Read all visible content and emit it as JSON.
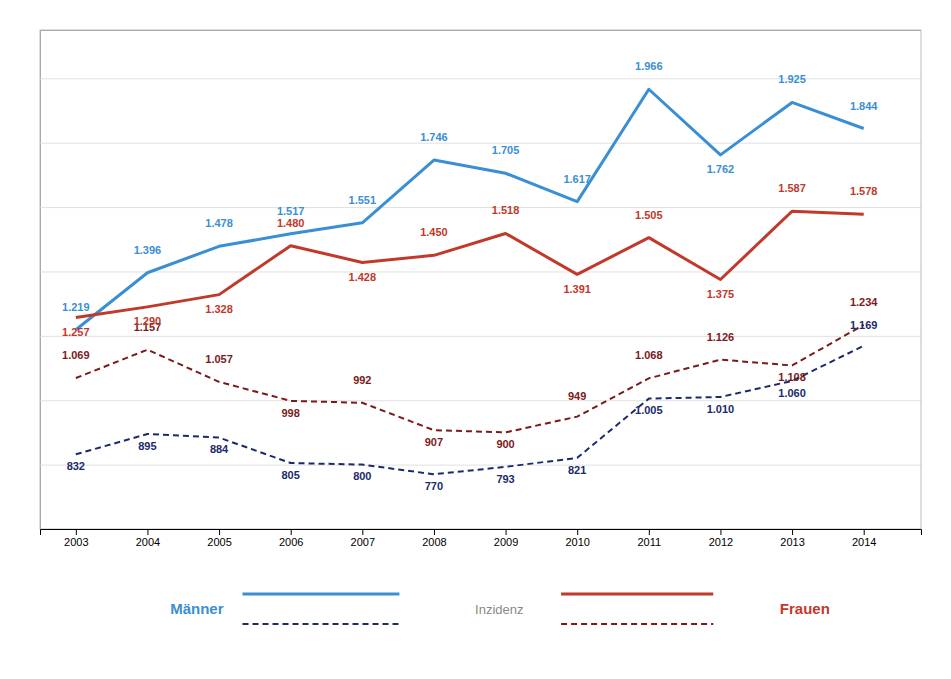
{
  "chart_data": {
    "type": "line",
    "x": [
      2003,
      2004,
      2005,
      2006,
      2007,
      2008,
      2009,
      2010,
      2011,
      2012,
      2013,
      2014
    ],
    "xlim": [
      2002.5,
      2014.8
    ],
    "xticks": [
      2003,
      2004,
      2005,
      2006,
      2007,
      2008,
      2009,
      2010,
      2011,
      2012,
      2013,
      2014
    ],
    "ylim": [
      600,
      2150
    ],
    "yticks": [
      800,
      1000,
      1200,
      1400,
      1600,
      1800,
      2000
    ],
    "grid": true,
    "tick_labels": "x",
    "data_labels": true,
    "annotations": [
      {
        "text": "Männer",
        "color": "#3a8fd4"
      },
      {
        "text": "Inzidenz",
        "color": "#888888"
      },
      {
        "text": "Frauen",
        "color": "#c0392b"
      }
    ],
    "series": [
      {
        "color": "#1a2a6c",
        "line_style": "dashed",
        "values": [
          832,
          895,
          884,
          805,
          800,
          770,
          793,
          821,
          1005,
          1010,
          1060,
          1169
        ],
        "value_labels": [
          "832",
          "895",
          "884",
          "805",
          "800",
          "770",
          "793",
          "821",
          "1.005",
          "1.010",
          "1.060",
          "1.169"
        ]
      },
      {
        "color": "#7b1a1a",
        "line_style": "dashed",
        "values": [
          1069,
          1157,
          1057,
          998,
          992,
          907,
          900,
          949,
          1068,
          1126,
          1108,
          1234
        ],
        "value_labels": [
          "1.069",
          "1.157",
          "1.057",
          "998",
          "992",
          "907",
          "900",
          "949",
          "1.068",
          "1.126",
          "1.108",
          "1.234"
        ]
      },
      {
        "color": "#3a8fd4",
        "line_style": "solid",
        "values": [
          1219,
          1396,
          1478,
          1517,
          1551,
          1746,
          1705,
          1617,
          1966,
          1762,
          1925,
          1844
        ],
        "value_labels": [
          "1.219",
          "1.396",
          "1.478",
          "1.517",
          "1.551",
          "1.746",
          "1.705",
          "1.617",
          "1.966",
          "1.762",
          "1.925",
          "1.844"
        ]
      },
      {
        "color": "#c0392b",
        "line_style": "solid",
        "values": [
          1257,
          1290,
          1328,
          1480,
          1428,
          1450,
          1518,
          1391,
          1505,
          1375,
          1587,
          1578
        ],
        "value_labels": [
          "1.257",
          "1.290",
          "1.328",
          "1.480",
          "1.428",
          "1.450",
          "1.518",
          "1.391",
          "1.505",
          "1.375",
          "1.587",
          "1.578"
        ]
      }
    ]
  }
}
